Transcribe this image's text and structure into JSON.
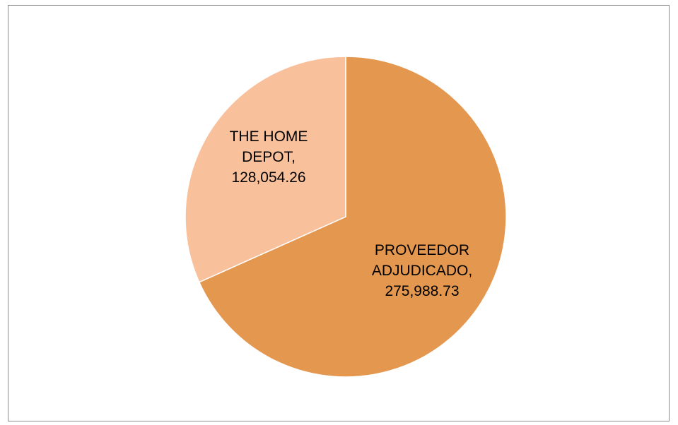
{
  "chart_data": {
    "type": "pie",
    "title": "",
    "slices": [
      {
        "name": "PROVEEDOR ADJUDICADO",
        "label_lines": [
          "PROVEEDOR",
          "ADJUDICADO,",
          "275,988.73"
        ],
        "value": 275988.73,
        "color": "#E3974F"
      },
      {
        "name": "THE HOME DEPOT",
        "label_lines": [
          "THE HOME",
          "DEPOT,",
          "128,054.26"
        ],
        "value": 128054.26,
        "color": "#F9C09C"
      }
    ],
    "start_angle_deg": 0,
    "direction": "clockwise",
    "legend": "none",
    "slice_border_color": "#FFFFFF"
  }
}
